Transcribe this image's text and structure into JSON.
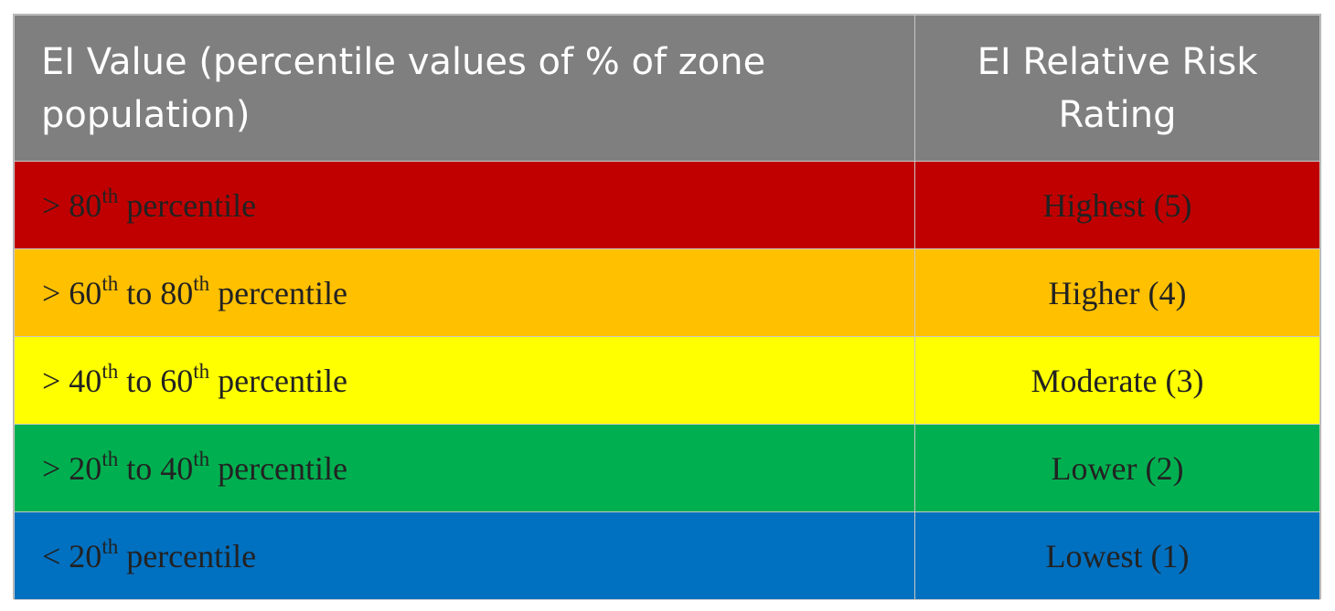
{
  "header": {
    "col1": "EI Value (percentile values of % of zone population)",
    "col2": "EI Relative Risk Rating"
  },
  "rows": [
    {
      "color": "#c00000",
      "range": {
        "pre": "> 80",
        "sup1": "th",
        "mid": " percentile",
        "sup2": "",
        "post": ""
      },
      "rating": "Highest (5)"
    },
    {
      "color": "#ffc000",
      "range": {
        "pre": "> 60",
        "sup1": "th",
        "mid": " to 80",
        "sup2": "th",
        "post": " percentile"
      },
      "rating": "Higher (4)"
    },
    {
      "color": "#ffff00",
      "range": {
        "pre": "> 40",
        "sup1": "th",
        "mid": " to 60",
        "sup2": "th",
        "post": " percentile"
      },
      "rating": "Moderate (3)"
    },
    {
      "color": "#00b050",
      "range": {
        "pre": "> 20",
        "sup1": "th",
        "mid": " to 40",
        "sup2": "th",
        "post": " percentile"
      },
      "rating": "Lower (2)"
    },
    {
      "color": "#0070c0",
      "range": {
        "pre": "< 20",
        "sup1": "th",
        "mid": " percentile",
        "sup2": "",
        "post": ""
      },
      "rating": "Lowest (1)"
    }
  ]
}
